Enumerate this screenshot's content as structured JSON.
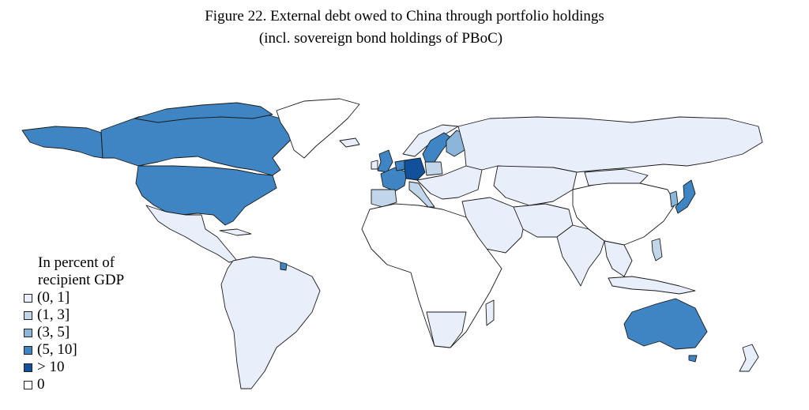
{
  "title": {
    "line1": "Figure 22. External debt owed to China through portfolio holdings",
    "line2": "(incl. sovereign bond holdings of PBoC)"
  },
  "legend": {
    "heading_line1": "In percent of",
    "heading_line2": "recipient GDP",
    "items": [
      {
        "label": "(0, 1]",
        "color": "#e8eefa"
      },
      {
        "label": "(1, 3]",
        "color": "#c2d6ea"
      },
      {
        "label": "(3, 5]",
        "color": "#8bb6d9"
      },
      {
        "label": "(5, 10]",
        "color": "#3f85c4"
      },
      {
        "label": "> 10",
        "color": "#11509a"
      },
      {
        "label": "0",
        "color": "#ffffff"
      }
    ]
  },
  "map": {
    "type": "choropleth",
    "projection": "world",
    "regions": [
      {
        "name": "Canada",
        "category": "(5, 10]"
      },
      {
        "name": "United States",
        "category": "(5, 10]"
      },
      {
        "name": "Mexico",
        "category": "(0, 1]"
      },
      {
        "name": "South America",
        "category": "(0, 1]"
      },
      {
        "name": "Greenland",
        "category": "0"
      },
      {
        "name": "United Kingdom",
        "category": "(5, 10]"
      },
      {
        "name": "France",
        "category": "(5, 10]"
      },
      {
        "name": "Germany",
        "category": "> 10"
      },
      {
        "name": "Netherlands",
        "category": "(5, 10]"
      },
      {
        "name": "Spain",
        "category": "(1, 3]"
      },
      {
        "name": "Italy",
        "category": "(1, 3]"
      },
      {
        "name": "Poland",
        "category": "(1, 3]"
      },
      {
        "name": "Sweden",
        "category": "(5, 10]"
      },
      {
        "name": "Finland",
        "category": "(3, 5]"
      },
      {
        "name": "Russia",
        "category": "(0, 1]"
      },
      {
        "name": "Africa",
        "category": "0"
      },
      {
        "name": "Middle East",
        "category": "(0, 1]"
      },
      {
        "name": "China",
        "category": "0"
      },
      {
        "name": "India",
        "category": "(0, 1]"
      },
      {
        "name": "Japan",
        "category": "(5, 10]"
      },
      {
        "name": "South Korea",
        "category": "(3, 5]"
      },
      {
        "name": "Southeast Asia",
        "category": "(0, 1]"
      },
      {
        "name": "Australia",
        "category": "(5, 10]"
      },
      {
        "name": "New Zealand",
        "category": "(0, 1]"
      },
      {
        "name": "French Guiana",
        "category": "(5, 10]"
      }
    ]
  }
}
